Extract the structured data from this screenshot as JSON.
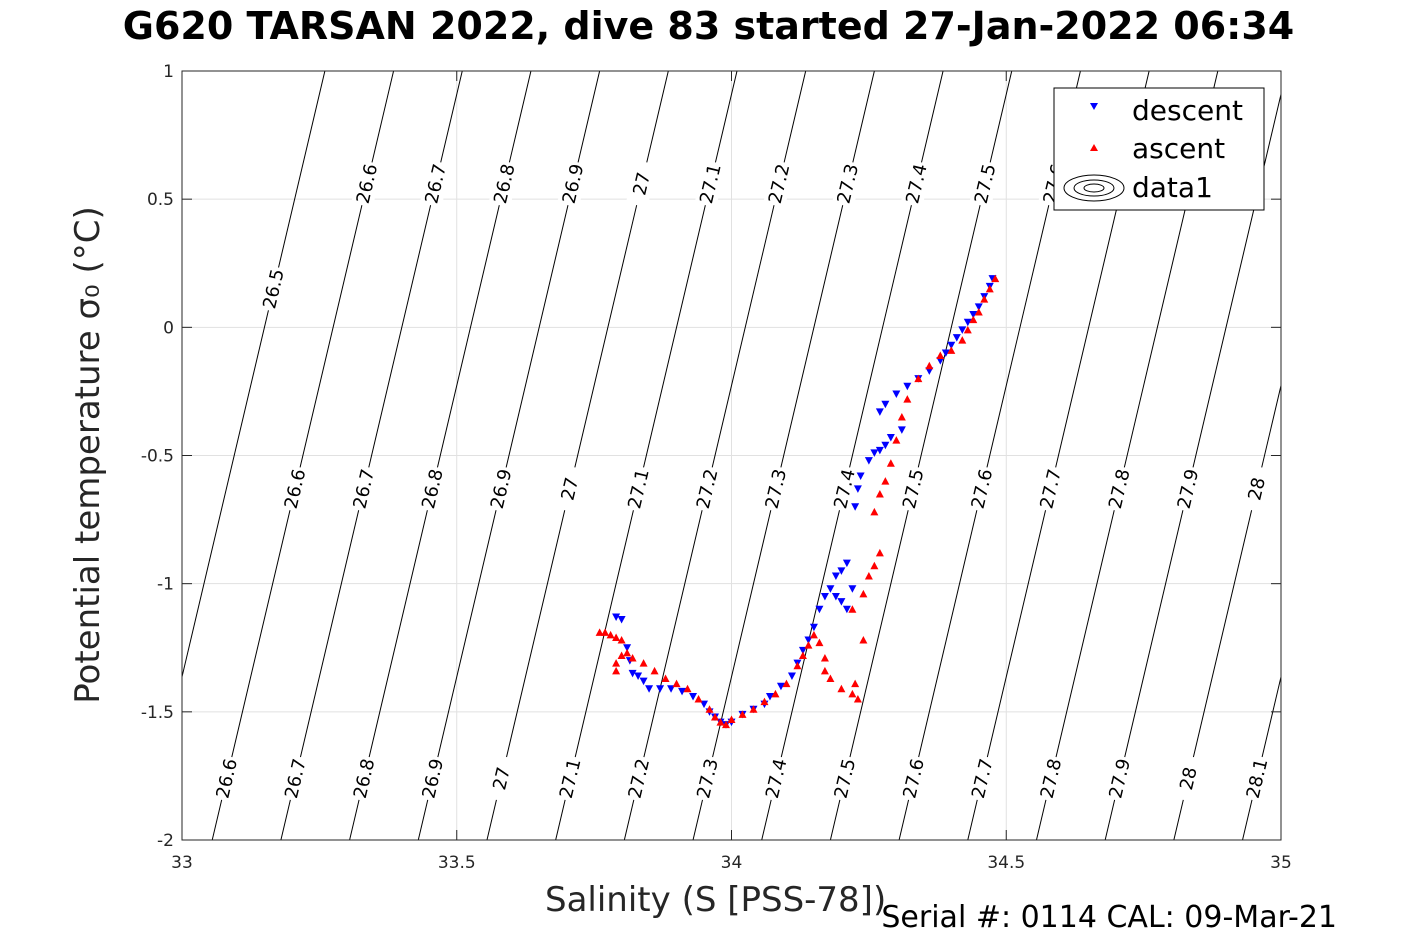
{
  "title": "G620 TARSAN 2022, dive 83 started 27-Jan-2022 06:34",
  "footer": "Serial #: 0114  CAL: 09-Mar-21",
  "colors": {
    "descent": "#0000ff",
    "ascent": "#ff0000",
    "grid": "#e1e1e1",
    "contour": "#000000"
  },
  "chart_data": {
    "type": "scatter",
    "xlabel": "Salinity (S [PSS-78])",
    "ylabel": "Potential temperature σ₀ (°C)",
    "xlim": [
      33,
      35
    ],
    "ylim": [
      -2,
      1
    ],
    "xticks": [
      33,
      33.5,
      34,
      34.5,
      35
    ],
    "yticks": [
      -2,
      -1.5,
      -1,
      -0.5,
      0,
      0.5,
      1
    ],
    "grid": true,
    "legend": {
      "placement": "top-right",
      "entries": [
        "descent",
        "ascent",
        "data1"
      ]
    },
    "contours": {
      "levels": [
        26.5,
        26.6,
        26.7,
        26.8,
        26.9,
        27,
        27.1,
        27.2,
        27.3,
        27.4,
        27.5,
        27.6,
        27.7,
        27.8,
        27.9,
        28,
        28.1
      ],
      "labels": [
        "26.5",
        "26.6",
        "26.7",
        "26.8",
        "26.9",
        "27",
        "27.1",
        "27.2",
        "27.3",
        "27.4",
        "27.5",
        "27.6",
        "27.7",
        "27.8",
        "27.9",
        "28",
        "28.1"
      ],
      "s_at_tmin": [
        32.93,
        33.055,
        33.18,
        33.305,
        33.43,
        33.555,
        33.68,
        33.805,
        33.93,
        34.055,
        34.18,
        34.305,
        34.43,
        34.555,
        34.68,
        34.805,
        34.93
      ],
      "slope_s_per_deg": 0.11,
      "upper_labels": [
        26.6,
        26.7,
        26.8,
        26.9,
        27,
        27.1,
        27.2,
        27.3,
        27.4,
        27.5,
        27.6,
        27.7
      ],
      "middle_labels": [
        26.5
      ],
      "lower_labels": [
        26.6,
        26.7,
        26.8,
        26.9,
        27,
        27.1,
        27.2,
        27.3,
        27.4,
        27.5,
        27.6,
        27.7,
        27.8,
        27.9,
        28,
        28.1
      ],
      "bottom_labels": [
        26.6,
        26.7,
        26.8,
        26.9,
        27,
        27.1,
        27.2,
        27.3,
        27.4,
        27.5,
        27.6,
        27.7,
        27.8,
        27.9,
        28,
        28.1
      ]
    },
    "series": [
      {
        "name": "descent",
        "marker": "triangle-down",
        "color": "#0000ff",
        "points": [
          [
            33.79,
            -1.13
          ],
          [
            33.8,
            -1.14
          ],
          [
            33.81,
            -1.25
          ],
          [
            33.815,
            -1.3
          ],
          [
            33.82,
            -1.35
          ],
          [
            33.83,
            -1.36
          ],
          [
            33.84,
            -1.38
          ],
          [
            33.85,
            -1.41
          ],
          [
            33.87,
            -1.41
          ],
          [
            33.89,
            -1.41
          ],
          [
            33.91,
            -1.42
          ],
          [
            33.93,
            -1.44
          ],
          [
            33.95,
            -1.47
          ],
          [
            33.96,
            -1.5
          ],
          [
            33.97,
            -1.52
          ],
          [
            33.98,
            -1.54
          ],
          [
            33.99,
            -1.55
          ],
          [
            34.0,
            -1.54
          ],
          [
            34.02,
            -1.51
          ],
          [
            34.04,
            -1.49
          ],
          [
            34.06,
            -1.47
          ],
          [
            34.07,
            -1.44
          ],
          [
            34.09,
            -1.4
          ],
          [
            34.11,
            -1.36
          ],
          [
            34.12,
            -1.31
          ],
          [
            34.13,
            -1.26
          ],
          [
            34.14,
            -1.22
          ],
          [
            34.15,
            -1.17
          ],
          [
            34.16,
            -1.1
          ],
          [
            34.17,
            -1.05
          ],
          [
            34.18,
            -1.02
          ],
          [
            34.19,
            -0.97
          ],
          [
            34.2,
            -0.95
          ],
          [
            34.21,
            -0.92
          ],
          [
            34.19,
            -1.05
          ],
          [
            34.2,
            -1.07
          ],
          [
            34.21,
            -1.1
          ],
          [
            34.22,
            -1.02
          ],
          [
            34.225,
            -0.7
          ],
          [
            34.23,
            -0.63
          ],
          [
            34.235,
            -0.58
          ],
          [
            34.25,
            -0.52
          ],
          [
            34.26,
            -0.49
          ],
          [
            34.27,
            -0.48
          ],
          [
            34.28,
            -0.46
          ],
          [
            34.29,
            -0.43
          ],
          [
            34.31,
            -0.4
          ],
          [
            34.27,
            -0.33
          ],
          [
            34.28,
            -0.3
          ],
          [
            34.3,
            -0.26
          ],
          [
            34.32,
            -0.23
          ],
          [
            34.34,
            -0.2
          ],
          [
            34.36,
            -0.17
          ],
          [
            34.38,
            -0.13
          ],
          [
            34.39,
            -0.1
          ],
          [
            34.4,
            -0.07
          ],
          [
            34.41,
            -0.04
          ],
          [
            34.42,
            -0.01
          ],
          [
            34.43,
            0.02
          ],
          [
            34.44,
            0.05
          ],
          [
            34.45,
            0.08
          ],
          [
            34.46,
            0.12
          ],
          [
            34.47,
            0.16
          ],
          [
            34.475,
            0.19
          ]
        ]
      },
      {
        "name": "ascent",
        "marker": "triangle-up",
        "color": "#ff0000",
        "points": [
          [
            33.76,
            -1.19
          ],
          [
            33.77,
            -1.19
          ],
          [
            33.78,
            -1.2
          ],
          [
            33.79,
            -1.21
          ],
          [
            33.8,
            -1.22
          ],
          [
            33.79,
            -1.31
          ],
          [
            33.79,
            -1.34
          ],
          [
            33.8,
            -1.28
          ],
          [
            33.81,
            -1.27
          ],
          [
            33.82,
            -1.29
          ],
          [
            33.84,
            -1.31
          ],
          [
            33.86,
            -1.34
          ],
          [
            33.88,
            -1.37
          ],
          [
            33.9,
            -1.39
          ],
          [
            33.92,
            -1.41
          ],
          [
            33.94,
            -1.45
          ],
          [
            33.96,
            -1.49
          ],
          [
            33.97,
            -1.52
          ],
          [
            33.98,
            -1.54
          ],
          [
            33.99,
            -1.55
          ],
          [
            34.0,
            -1.53
          ],
          [
            34.02,
            -1.51
          ],
          [
            34.04,
            -1.49
          ],
          [
            34.06,
            -1.46
          ],
          [
            34.08,
            -1.43
          ],
          [
            34.1,
            -1.39
          ],
          [
            34.12,
            -1.32
          ],
          [
            34.13,
            -1.28
          ],
          [
            34.14,
            -1.24
          ],
          [
            34.15,
            -1.2
          ],
          [
            34.16,
            -1.23
          ],
          [
            34.17,
            -1.29
          ],
          [
            34.17,
            -1.34
          ],
          [
            34.18,
            -1.37
          ],
          [
            34.2,
            -1.41
          ],
          [
            34.22,
            -1.43
          ],
          [
            34.225,
            -1.39
          ],
          [
            34.23,
            -1.45
          ],
          [
            34.24,
            -1.22
          ],
          [
            34.22,
            -1.1
          ],
          [
            34.24,
            -1.04
          ],
          [
            34.25,
            -0.97
          ],
          [
            34.26,
            -0.93
          ],
          [
            34.27,
            -0.88
          ],
          [
            34.26,
            -0.72
          ],
          [
            34.27,
            -0.65
          ],
          [
            34.28,
            -0.6
          ],
          [
            34.29,
            -0.53
          ],
          [
            34.3,
            -0.44
          ],
          [
            34.31,
            -0.35
          ],
          [
            34.32,
            -0.28
          ],
          [
            34.34,
            -0.2
          ],
          [
            34.36,
            -0.15
          ],
          [
            34.38,
            -0.11
          ],
          [
            34.4,
            -0.09
          ],
          [
            34.42,
            -0.05
          ],
          [
            34.43,
            -0.01
          ],
          [
            34.44,
            0.03
          ],
          [
            34.45,
            0.06
          ],
          [
            34.46,
            0.11
          ],
          [
            34.47,
            0.15
          ],
          [
            34.48,
            0.19
          ]
        ]
      }
    ]
  }
}
